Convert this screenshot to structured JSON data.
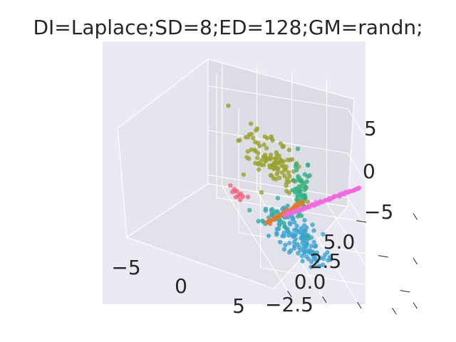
{
  "chart_data": {
    "type": "scatter",
    "projection": "3d",
    "title": "DI=Laplace;SD=8;ED=128;GM=randn;",
    "style": "seaborn darkgrid",
    "background_color": "#EAEAF2",
    "grid": true,
    "xlim": [
      -7,
      8
    ],
    "ylim": [
      -3.5,
      6.5
    ],
    "zlim": [
      -6,
      8
    ],
    "x_ticks": [
      -5,
      0,
      5
    ],
    "x_tick_labels": [
      "−5",
      "0",
      "5"
    ],
    "y_ticks": [
      -2.5,
      0.0,
      2.5,
      5.0
    ],
    "y_tick_labels": [
      "−2.5",
      "0.0",
      "2.5",
      "5.0"
    ],
    "z_ticks": [
      -5,
      0,
      5
    ],
    "z_tick_labels": [
      "−5",
      "0",
      "5"
    ],
    "series": [
      {
        "color": "#3BA3D0",
        "kind": "cloud",
        "center": [
          3.0,
          0.0,
          -3.5
        ],
        "spread": [
          2.0,
          0.8,
          0.5
        ],
        "count": 120
      },
      {
        "color": "#9AA22C",
        "kind": "cloud",
        "center": [
          -3.5,
          0.0,
          0.0
        ],
        "spread": [
          1.8,
          0.8,
          0.9
        ],
        "count": 110
      },
      {
        "color": "#2DB37E",
        "kind": "cloud",
        "center": [
          1.5,
          0.5,
          1.0
        ],
        "spread": [
          0.3,
          0.3,
          2.0
        ],
        "count": 50
      },
      {
        "color": "#36ADA4",
        "kind": "cloud",
        "center": [
          0.5,
          -1.0,
          -3.0
        ],
        "spread": [
          0.5,
          0.6,
          0.8
        ],
        "count": 30
      },
      {
        "color": "#E17B2E",
        "kind": "line",
        "start": [
          -1.5,
          -1.0,
          -5.5
        ],
        "end": [
          0.5,
          1.0,
          -1.0
        ],
        "count": 45
      },
      {
        "color": "#F467E0",
        "kind": "line",
        "start": [
          -0.5,
          0.0,
          -3.5
        ],
        "end": [
          5.0,
          4.5,
          5.5
        ],
        "count": 70
      },
      {
        "color": "#F0657A",
        "kind": "cluster",
        "center": [
          -2.8,
          -2.6,
          -3.6
        ],
        "spread": [
          0.3,
          0.3,
          0.3
        ],
        "count": 12
      }
    ]
  }
}
